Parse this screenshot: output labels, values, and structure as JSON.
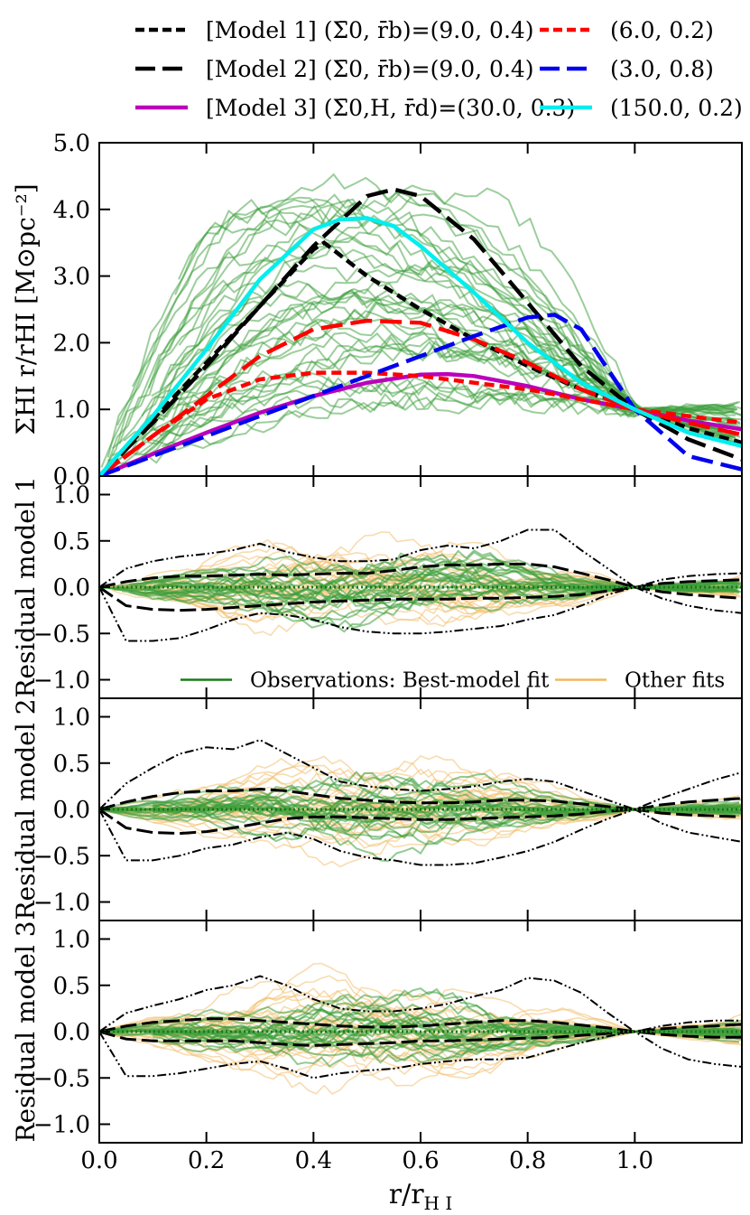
{
  "chart_data": {
    "type": "line",
    "x_axis": {
      "label": "r/r_HI",
      "label_parts": {
        "main": "r/r",
        "sub": "H I"
      },
      "range": [
        0.0,
        1.2
      ],
      "ticks": [
        0.0,
        0.2,
        0.4,
        0.6,
        0.8,
        1.0
      ],
      "tick_labels": [
        "0.0",
        "0.2",
        "0.4",
        "0.6",
        "0.8",
        "1.0"
      ]
    },
    "legend": {
      "placement": "top",
      "entries": [
        {
          "label": "[Model 1] (Σ̄0, r̄b)=(9.0, 0.4)",
          "color": "#000000",
          "style": "short-dash",
          "width": 4
        },
        {
          "label": "(6.0, 0.2)",
          "color": "#ff0000",
          "style": "short-dash",
          "width": 4
        },
        {
          "label": "[Model 2] (Σ̄0, r̄b)=(9.0, 0.4)",
          "color": "#000000",
          "style": "long-dash",
          "width": 4
        },
        {
          "label": "(3.0, 0.8)",
          "color": "#0000ee",
          "style": "long-dash",
          "width": 4
        },
        {
          "label": "[Model 3] (Σ̄0,H, r̄d)=(30.0, 0.3)",
          "color": "#bb00bb",
          "style": "solid",
          "width": 4
        },
        {
          "label": "(150.0, 0.2)",
          "color": "#00eeee",
          "style": "solid",
          "width": 4
        }
      ]
    },
    "panels": [
      {
        "id": "profiles",
        "ylabel": "Σ_HI r/r_HI [M⊙ pc^-2]",
        "ylabel_text": "ΣHI r/rHI [M⊙pc⁻²]",
        "ylim": [
          0.0,
          5.0
        ],
        "yticks": [
          0.0,
          1.0,
          2.0,
          3.0,
          4.0,
          5.0
        ],
        "ytick_labels": [
          "0.0",
          "1.0",
          "2.0",
          "3.0",
          "4.0",
          "5.0"
        ],
        "observations": {
          "color": "#2e9a2e",
          "count": 40,
          "description": "Observed HI profiles (green)"
        },
        "series": [
          {
            "name": "Model 1 (9.0, 0.4)",
            "color": "#000000",
            "style": "short-dash",
            "x": [
              0.0,
              0.1,
              0.2,
              0.3,
              0.4,
              0.42,
              0.5,
              0.6,
              0.7,
              0.8,
              0.9,
              1.0,
              1.1,
              1.2
            ],
            "y": [
              0.0,
              0.85,
              1.7,
              2.55,
              3.4,
              3.5,
              3.0,
              2.5,
              2.05,
              1.65,
              1.3,
              1.0,
              0.72,
              0.5
            ]
          },
          {
            "name": "Model 2 (9.0, 0.4)",
            "color": "#000000",
            "style": "long-dash",
            "x": [
              0.0,
              0.1,
              0.2,
              0.3,
              0.4,
              0.5,
              0.55,
              0.6,
              0.7,
              0.8,
              0.9,
              1.0,
              1.1,
              1.2
            ],
            "y": [
              0.0,
              0.8,
              1.65,
              2.55,
              3.45,
              4.2,
              4.3,
              4.2,
              3.55,
              2.6,
              1.65,
              1.0,
              0.55,
              0.25
            ]
          },
          {
            "name": "Model 3 (30.0, 0.3)",
            "color": "#bb00bb",
            "style": "solid",
            "x": [
              0.0,
              0.1,
              0.2,
              0.3,
              0.4,
              0.5,
              0.6,
              0.65,
              0.7,
              0.8,
              0.9,
              1.0,
              1.1,
              1.2
            ],
            "y": [
              0.0,
              0.33,
              0.65,
              0.95,
              1.2,
              1.4,
              1.52,
              1.53,
              1.5,
              1.35,
              1.15,
              1.0,
              0.83,
              0.7
            ]
          },
          {
            "name": "(6.0, 0.2) model 1",
            "color": "#ff0000",
            "style": "short-dash",
            "x": [
              0.0,
              0.1,
              0.2,
              0.3,
              0.4,
              0.5,
              0.6,
              0.7,
              0.8,
              0.9,
              1.0,
              1.1,
              1.2
            ],
            "y": [
              0.0,
              0.6,
              1.15,
              1.45,
              1.55,
              1.55,
              1.5,
              1.4,
              1.3,
              1.15,
              1.0,
              0.9,
              0.8
            ]
          },
          {
            "name": "(6.0, 0.2) model 2",
            "color": "#ff0000",
            "style": "long-dash",
            "x": [
              0.0,
              0.1,
              0.2,
              0.3,
              0.4,
              0.5,
              0.6,
              0.7,
              0.8,
              0.9,
              1.0,
              1.1,
              1.2
            ],
            "y": [
              0.0,
              0.6,
              1.2,
              1.8,
              2.2,
              2.33,
              2.3,
              2.05,
              1.7,
              1.3,
              1.0,
              0.8,
              0.62
            ]
          },
          {
            "name": "(3.0, 0.8)",
            "color": "#0000ee",
            "style": "long-dash",
            "x": [
              0.0,
              0.1,
              0.2,
              0.3,
              0.4,
              0.5,
              0.6,
              0.7,
              0.8,
              0.85,
              0.9,
              1.0,
              1.1,
              1.2
            ],
            "y": [
              0.0,
              0.3,
              0.6,
              0.9,
              1.2,
              1.5,
              1.8,
              2.1,
              2.38,
              2.42,
              2.2,
              1.0,
              0.3,
              0.1
            ]
          },
          {
            "name": "(150.0, 0.2)",
            "color": "#00eeee",
            "style": "solid",
            "x": [
              0.0,
              0.1,
              0.2,
              0.3,
              0.4,
              0.45,
              0.5,
              0.55,
              0.6,
              0.7,
              0.8,
              0.9,
              1.0,
              1.1,
              1.2
            ],
            "y": [
              0.0,
              0.9,
              1.9,
              2.95,
              3.7,
              3.85,
              3.87,
              3.75,
              3.45,
              2.75,
              2.0,
              1.4,
              1.0,
              0.65,
              0.45
            ]
          }
        ]
      },
      {
        "id": "residual1",
        "ylabel": "Residual model 1",
        "ylim": [
          -1.2,
          1.2
        ],
        "yticks": [
          -1.0,
          -0.5,
          0.0,
          0.5,
          1.0
        ],
        "ytick_labels": [
          "−1.0",
          "−0.5",
          "0.0",
          "0.5",
          "1.0"
        ],
        "legend": [
          {
            "label": "Observations: Best-model fit",
            "color": "#1a7a1a"
          },
          {
            "label": "Other fits",
            "color": "#f0b85a"
          }
        ],
        "envelopes": {
          "x": [
            0.0,
            0.05,
            0.1,
            0.15,
            0.2,
            0.25,
            0.3,
            0.35,
            0.4,
            0.45,
            0.5,
            0.55,
            0.6,
            0.65,
            0.7,
            0.75,
            0.8,
            0.85,
            0.9,
            0.95,
            1.0,
            1.05,
            1.1,
            1.15,
            1.2
          ],
          "outer_upper": [
            0.0,
            0.2,
            0.28,
            0.33,
            0.36,
            0.4,
            0.47,
            0.38,
            0.32,
            0.28,
            0.28,
            0.3,
            0.4,
            0.45,
            0.42,
            0.5,
            0.62,
            0.62,
            0.4,
            0.2,
            0.0,
            0.08,
            0.12,
            0.14,
            0.15
          ],
          "inner_upper": [
            0.0,
            0.06,
            0.1,
            0.12,
            0.12,
            0.13,
            0.14,
            0.13,
            0.14,
            0.15,
            0.15,
            0.18,
            0.22,
            0.24,
            0.24,
            0.25,
            0.25,
            0.22,
            0.15,
            0.08,
            0.0,
            0.04,
            0.06,
            0.07,
            0.08
          ],
          "inner_lower": [
            0.0,
            -0.2,
            -0.24,
            -0.25,
            -0.24,
            -0.22,
            -0.2,
            -0.18,
            -0.16,
            -0.15,
            -0.14,
            -0.13,
            -0.13,
            -0.13,
            -0.12,
            -0.12,
            -0.11,
            -0.1,
            -0.08,
            -0.04,
            0.0,
            -0.05,
            -0.08,
            -0.1,
            -0.12
          ],
          "outer_lower": [
            0.0,
            -0.58,
            -0.58,
            -0.55,
            -0.46,
            -0.35,
            -0.28,
            -0.3,
            -0.35,
            -0.43,
            -0.48,
            -0.5,
            -0.5,
            -0.48,
            -0.45,
            -0.42,
            -0.35,
            -0.3,
            -0.2,
            -0.08,
            0.0,
            -0.12,
            -0.2,
            -0.25,
            -0.28
          ]
        }
      },
      {
        "id": "residual2",
        "ylabel": "Residual model 2",
        "ylim": [
          -1.2,
          1.2
        ],
        "yticks": [
          -1.0,
          -0.5,
          0.0,
          0.5,
          1.0
        ],
        "ytick_labels": [
          "−1.0",
          "−0.5",
          "0.0",
          "0.5",
          "1.0"
        ],
        "envelopes": {
          "x": [
            0.0,
            0.05,
            0.1,
            0.15,
            0.2,
            0.25,
            0.3,
            0.35,
            0.4,
            0.45,
            0.5,
            0.55,
            0.6,
            0.65,
            0.7,
            0.75,
            0.8,
            0.85,
            0.9,
            0.95,
            1.0,
            1.05,
            1.1,
            1.15,
            1.2
          ],
          "outer_upper": [
            0.0,
            0.28,
            0.45,
            0.6,
            0.67,
            0.65,
            0.75,
            0.6,
            0.45,
            0.3,
            0.25,
            0.22,
            0.2,
            0.22,
            0.25,
            0.3,
            0.33,
            0.3,
            0.2,
            0.1,
            0.0,
            0.12,
            0.22,
            0.32,
            0.4
          ],
          "inner_upper": [
            0.0,
            0.08,
            0.14,
            0.18,
            0.2,
            0.2,
            0.22,
            0.2,
            0.16,
            0.12,
            0.1,
            0.08,
            0.07,
            0.07,
            0.08,
            0.1,
            0.1,
            0.09,
            0.06,
            0.03,
            0.0,
            0.05,
            0.08,
            0.1,
            0.12
          ],
          "inner_lower": [
            0.0,
            -0.2,
            -0.25,
            -0.26,
            -0.24,
            -0.2,
            -0.15,
            -0.1,
            -0.08,
            -0.08,
            -0.09,
            -0.1,
            -0.11,
            -0.11,
            -0.1,
            -0.09,
            -0.08,
            -0.07,
            -0.05,
            -0.02,
            0.0,
            -0.04,
            -0.06,
            -0.07,
            -0.08
          ],
          "outer_lower": [
            0.0,
            -0.55,
            -0.55,
            -0.5,
            -0.42,
            -0.38,
            -0.3,
            -0.25,
            -0.32,
            -0.45,
            -0.52,
            -0.55,
            -0.6,
            -0.6,
            -0.58,
            -0.52,
            -0.45,
            -0.35,
            -0.22,
            -0.1,
            0.0,
            -0.15,
            -0.25,
            -0.3,
            -0.35
          ]
        }
      },
      {
        "id": "residual3",
        "ylabel": "Residual model 3",
        "ylim": [
          -1.2,
          1.2
        ],
        "yticks": [
          -1.0,
          -0.5,
          0.0,
          0.5,
          1.0
        ],
        "ytick_labels": [
          "−1.0",
          "−0.5",
          "0.0",
          "0.5",
          "1.0"
        ],
        "envelopes": {
          "x": [
            0.0,
            0.05,
            0.1,
            0.15,
            0.2,
            0.25,
            0.3,
            0.35,
            0.4,
            0.45,
            0.5,
            0.55,
            0.6,
            0.65,
            0.7,
            0.75,
            0.8,
            0.85,
            0.9,
            0.95,
            1.0,
            1.05,
            1.1,
            1.15,
            1.2
          ],
          "outer_upper": [
            0.0,
            0.2,
            0.28,
            0.35,
            0.45,
            0.5,
            0.6,
            0.5,
            0.35,
            0.25,
            0.22,
            0.22,
            0.25,
            0.3,
            0.38,
            0.45,
            0.58,
            0.55,
            0.42,
            0.2,
            0.0,
            0.06,
            0.1,
            0.12,
            0.12
          ],
          "inner_upper": [
            0.0,
            0.06,
            0.1,
            0.12,
            0.14,
            0.14,
            0.12,
            0.1,
            0.08,
            0.06,
            0.05,
            0.05,
            0.06,
            0.08,
            0.1,
            0.12,
            0.12,
            0.1,
            0.07,
            0.04,
            0.0,
            0.03,
            0.05,
            0.06,
            0.08
          ],
          "inner_lower": [
            0.0,
            -0.08,
            -0.1,
            -0.1,
            -0.1,
            -0.1,
            -0.12,
            -0.14,
            -0.15,
            -0.14,
            -0.13,
            -0.12,
            -0.1,
            -0.1,
            -0.09,
            -0.08,
            -0.07,
            -0.06,
            -0.04,
            -0.02,
            0.0,
            -0.03,
            -0.05,
            -0.06,
            -0.06
          ],
          "outer_lower": [
            0.0,
            -0.48,
            -0.48,
            -0.45,
            -0.4,
            -0.35,
            -0.32,
            -0.4,
            -0.5,
            -0.45,
            -0.42,
            -0.4,
            -0.35,
            -0.32,
            -0.3,
            -0.3,
            -0.28,
            -0.2,
            -0.12,
            -0.05,
            0.0,
            -0.18,
            -0.3,
            -0.35,
            -0.38
          ]
        }
      }
    ],
    "colors": {
      "obs": "#3a9e3a",
      "other": "#f2c070",
      "best": "#1a7a1a"
    }
  }
}
